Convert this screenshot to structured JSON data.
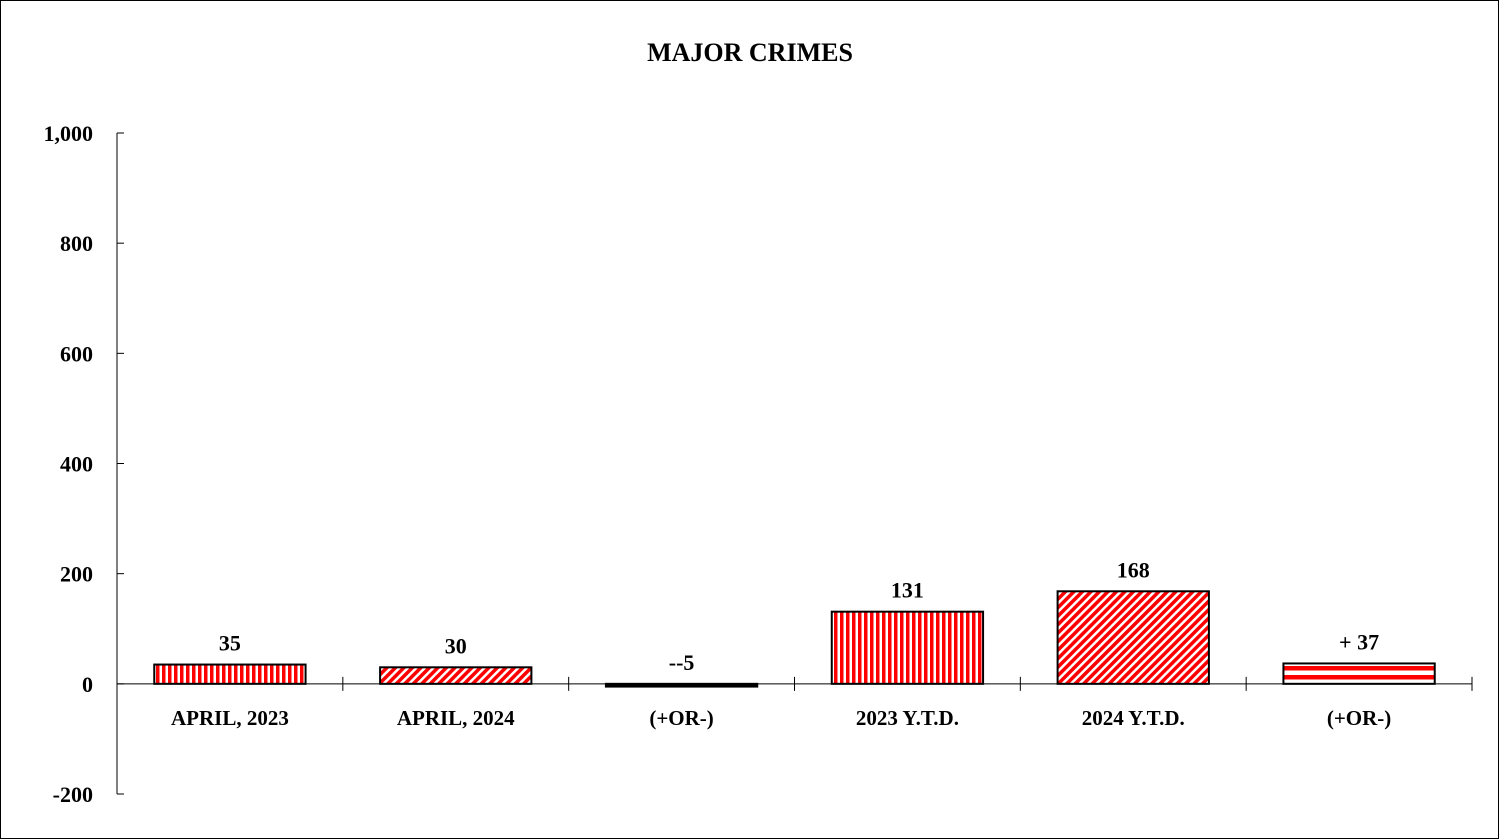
{
  "chart_data": {
    "type": "bar",
    "title": "MAJOR CRIMES",
    "xlabel": "",
    "ylabel": "",
    "categories": [
      "APRIL, 2023",
      "APRIL, 2024",
      "(+OR-)",
      "2023 Y.T.D.",
      "2024 Y.T.D.",
      "(+OR-)"
    ],
    "values": [
      35,
      30,
      -5,
      131,
      168,
      37
    ],
    "data_labels": [
      "35",
      "30",
      "--5",
      "131",
      "168",
      "+ 37"
    ],
    "bar_patterns": [
      "vertical-stripes",
      "diagonal-hatch",
      "solid",
      "vertical-stripes",
      "diagonal-hatch",
      "horizontal-stripes"
    ],
    "ylim": [
      -200,
      1000
    ],
    "y_ticks": [
      1000,
      800,
      600,
      400,
      200,
      0,
      -200
    ],
    "y_tick_labels": [
      "1,000",
      "800",
      "600",
      "400",
      "200",
      "0",
      "-200"
    ],
    "grid": false,
    "legend": "none",
    "colors": {
      "bar_fill": "#ff0000",
      "bar_outline": "#000000",
      "stripe_light": "#ffffff",
      "axis": "#000000"
    }
  }
}
